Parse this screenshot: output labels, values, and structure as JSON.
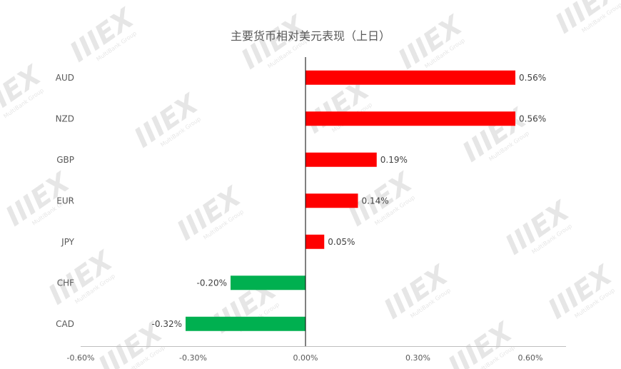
{
  "watermark": {
    "mark": "IIIEX",
    "tagline": "MultiBank Group"
  },
  "chart_data": {
    "type": "bar",
    "orientation": "horizontal",
    "title": "主要货币相对美元表现（上日）",
    "categories": [
      "AUD",
      "NZD",
      "GBP",
      "EUR",
      "JPY",
      "CHF",
      "CAD"
    ],
    "values": [
      0.56,
      0.56,
      0.19,
      0.14,
      0.05,
      -0.2,
      -0.32
    ],
    "value_labels": [
      "0.56%",
      "0.56%",
      "0.19%",
      "0.14%",
      "0.05%",
      "-0.20%",
      "-0.32%"
    ],
    "xlim": [
      -0.6,
      0.6
    ],
    "x_ticks": [
      -0.6,
      -0.3,
      0,
      0.3,
      0.6
    ],
    "x_tick_labels": [
      "-0.60%",
      "-0.30%",
      "0.00%",
      "0.30%",
      "0.60%"
    ],
    "positive_color": "#ff0000",
    "negative_color": "#00b050",
    "grid": false,
    "legend": "none"
  }
}
